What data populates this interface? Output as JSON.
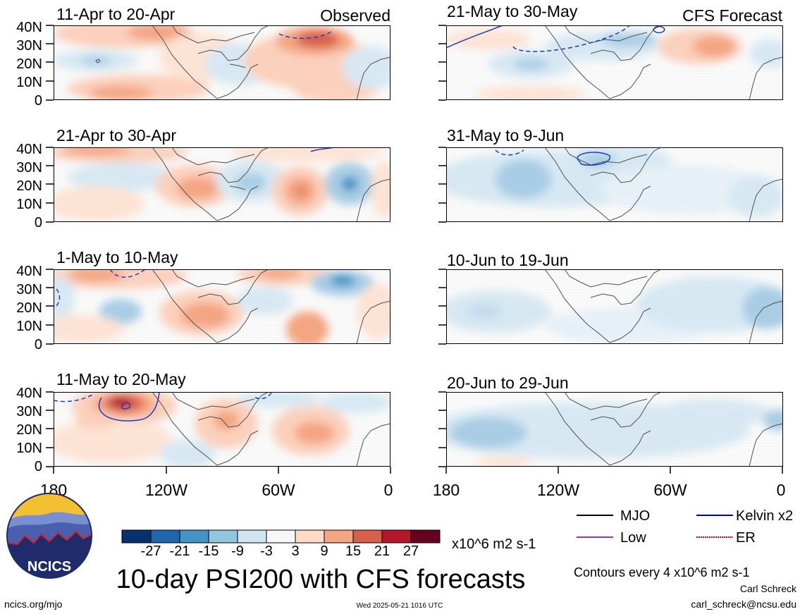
{
  "panels": [
    {
      "period": "11-Apr to 20-Apr",
      "tag": "Observed"
    },
    {
      "period": "21-Apr to 30-Apr",
      "tag": ""
    },
    {
      "period": "1-May to 10-May",
      "tag": ""
    },
    {
      "period": "11-May to 20-May",
      "tag": ""
    },
    {
      "period": "21-May to 30-May",
      "tag": "CFS Forecast"
    },
    {
      "period": "31-May to 9-Jun",
      "tag": ""
    },
    {
      "period": "10-Jun to 19-Jun",
      "tag": ""
    },
    {
      "period": "20-Jun to 29-Jun",
      "tag": ""
    }
  ],
  "lat_ticks": [
    "40N",
    "30N",
    "20N",
    "10N",
    "0"
  ],
  "lon_ticks": [
    "180",
    "120W",
    "60W",
    "0"
  ],
  "colorbar": {
    "labels": [
      "-27",
      "-21",
      "-15",
      "-9",
      "-3",
      "3",
      "9",
      "15",
      "21",
      "27"
    ],
    "colors": [
      "#08306b",
      "#2166ac",
      "#4393c3",
      "#92c5de",
      "#d1e5f0",
      "#f7f7f7",
      "#fddbc7",
      "#f4a582",
      "#d6604d",
      "#b2182b",
      "#67001f"
    ],
    "units": "x10^6 m2 s-1"
  },
  "legend": [
    {
      "label": "MJO",
      "color": "#000000"
    },
    {
      "label": "Kelvin x2",
      "color": "#0000cc"
    },
    {
      "label": "Low",
      "color": "#9933cc"
    },
    {
      "label": "ER",
      "color": "#cc0000"
    }
  ],
  "contour_note": "Contours every 4 x10^6 m2 s-1",
  "title": "10-day PSI200 with CFS forecasts",
  "logo_text": "NCICS",
  "footer": {
    "url": "ncics.org/mjo",
    "timestamp": "Wed 2025-05-21 1016 UTC",
    "author": "Carl Schreck",
    "email": "carl_schreck@ncsu.edu"
  }
}
